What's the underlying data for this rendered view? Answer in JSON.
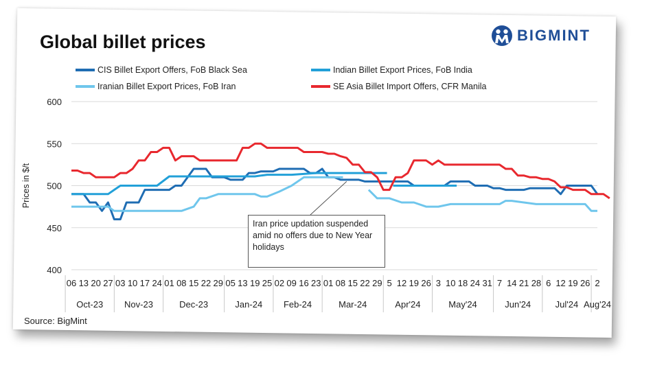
{
  "title": "Global billet prices",
  "brand": "BIGMINT",
  "source": "Source: BigMint",
  "annotation": "Iran price updation suspended amid no offers due to New Year holidays",
  "chart_data": {
    "type": "line",
    "title": "Global billet prices",
    "xlabel": "",
    "ylabel": "Prices in $/t",
    "ylim": [
      400,
      600
    ],
    "yticks": [
      400,
      450,
      500,
      550,
      600
    ],
    "x_tick_labels": [
      "06",
      "13",
      "20",
      "27",
      "03",
      "10",
      "17",
      "24",
      "01",
      "08",
      "15",
      "22",
      "29",
      "05",
      "13",
      "19",
      "25",
      "02",
      "09",
      "16",
      "23",
      "01",
      "08",
      "15",
      "22",
      "29",
      "5",
      "12",
      "19",
      "26",
      "3",
      "10",
      "18",
      "24",
      "31",
      "7",
      "14",
      "21",
      "28",
      "6",
      "12",
      "19",
      "26",
      "2"
    ],
    "months": [
      {
        "label": "Oct-23",
        "start": 0,
        "end": 4
      },
      {
        "label": "Nov-23",
        "start": 4,
        "end": 8
      },
      {
        "label": "Dec-23",
        "start": 8,
        "end": 13
      },
      {
        "label": "Jan-24",
        "start": 13,
        "end": 17
      },
      {
        "label": "Feb-24",
        "start": 17,
        "end": 21
      },
      {
        "label": "Mar-24",
        "start": 21,
        "end": 26
      },
      {
        "label": "Apr'24",
        "start": 26,
        "end": 30
      },
      {
        "label": "May'24",
        "start": 30,
        "end": 35
      },
      {
        "label": "Jun'24",
        "start": 35,
        "end": 39
      },
      {
        "label": "Jul'24",
        "start": 39,
        "end": 43
      },
      {
        "label": "Aug'24",
        "start": 43,
        "end": 44
      }
    ],
    "series": [
      {
        "name": "CIS Billet Export Offers, FoB Black Sea",
        "color": "#1f6db3",
        "x": [
          0,
          0.5,
          1,
          1.5,
          2,
          2.5,
          3,
          3.5,
          4,
          4.5,
          5,
          5.5,
          6,
          6.5,
          7,
          7.5,
          8,
          8.5,
          9,
          9.5,
          10,
          10.5,
          11,
          11.5,
          12,
          12.5,
          13,
          13.5,
          14,
          14.5,
          15,
          15.5,
          16,
          16.5,
          17,
          17.5,
          18,
          18.5,
          19,
          19.5,
          20,
          20.5,
          21,
          21.5,
          22,
          22.5,
          23,
          23.5,
          24,
          24.5,
          25,
          25.5,
          26,
          26.5,
          27,
          27.5,
          28,
          28.5,
          29,
          29.5,
          30,
          30.5,
          31,
          31.5,
          32,
          32.5,
          33,
          33.5,
          34,
          34.5,
          35,
          35.5,
          36,
          36.5,
          37,
          37.5,
          38,
          38.5,
          39,
          39.5,
          40,
          40.5,
          41,
          41.5,
          42,
          42.5,
          43
        ],
        "values": [
          490,
          490,
          490,
          480,
          480,
          470,
          480,
          460,
          460,
          480,
          480,
          480,
          495,
          495,
          495,
          495,
          495,
          500,
          500,
          510,
          520,
          520,
          520,
          510,
          510,
          510,
          507,
          507,
          507,
          515,
          515,
          517,
          517,
          517,
          520,
          520,
          520,
          520,
          520,
          515,
          515,
          520,
          510,
          510,
          507,
          507,
          507,
          507,
          505,
          505,
          505,
          505,
          505,
          505,
          505,
          505,
          500,
          500,
          500,
          500,
          500,
          500,
          505,
          505,
          505,
          505,
          500,
          500,
          500,
          497,
          497,
          495,
          495,
          495,
          495,
          497,
          497,
          497,
          497,
          497,
          490,
          500,
          500,
          500,
          500,
          500,
          490
        ]
      },
      {
        "name": "Indian Billet Export Prices, FoB India",
        "color": "#22a0d8",
        "x": [
          0,
          1,
          2,
          3,
          3.5,
          4,
          5,
          6,
          7,
          8,
          9,
          10,
          11,
          12,
          13,
          14,
          15,
          16,
          17,
          18,
          19,
          20,
          21,
          22,
          23,
          24,
          25,
          25.8
        ],
        "values": [
          490,
          490,
          490,
          490,
          495,
          500,
          500,
          500,
          500,
          511,
          511,
          511,
          511,
          511,
          511,
          511,
          511,
          513,
          513,
          513,
          514,
          515,
          515,
          515,
          515,
          515,
          515,
          515
        ],
        "x2": [
          26.3,
          27,
          28,
          29,
          30,
          31,
          31.5
        ],
        "values2": [
          500,
          500,
          500,
          500,
          500,
          500,
          500
        ]
      },
      {
        "name": "Iranian Billet Export Prices, FoB Iran",
        "color": "#6fc6ec",
        "x": [
          0,
          1,
          2,
          3,
          3.5,
          4,
          5,
          6,
          7,
          8,
          9,
          10,
          10.5,
          11,
          12,
          13,
          14,
          15,
          15.5,
          16,
          17,
          18,
          19,
          20,
          21,
          22,
          22.2
        ],
        "values": [
          475,
          475,
          475,
          475,
          470,
          470,
          470,
          470,
          470,
          470,
          470,
          475,
          485,
          485,
          490,
          490,
          490,
          490,
          487,
          487,
          493,
          500,
          510,
          510,
          510,
          510,
          510
        ],
        "x2": [
          24.3,
          25,
          26,
          27,
          28,
          29,
          30,
          31,
          32,
          33,
          34,
          35,
          35.5,
          36,
          37,
          38,
          39,
          40,
          41,
          42,
          42.5,
          43
        ],
        "values2": [
          495,
          485,
          485,
          480,
          480,
          475,
          475,
          478,
          478,
          478,
          478,
          478,
          482,
          482,
          480,
          478,
          478,
          478,
          478,
          478,
          470,
          470
        ]
      },
      {
        "name": "SE Asia Billet Import Offers, CFR Manila",
        "color": "#e8282e",
        "x": [
          0,
          0.5,
          1,
          1.5,
          2,
          2.5,
          3,
          3.5,
          4,
          4.5,
          5,
          5.5,
          6,
          6.5,
          7,
          7.5,
          8,
          8.5,
          9,
          9.5,
          10,
          10.5,
          11,
          11.5,
          12,
          12.5,
          13,
          13.5,
          14,
          14.5,
          15,
          15.5,
          16,
          16.5,
          17,
          17.5,
          18,
          18.5,
          19,
          19.5,
          20,
          20.5,
          21,
          21.5,
          22,
          22.5,
          23,
          23.5,
          24,
          24.5,
          25,
          25.5,
          26,
          26.5,
          27,
          27.5,
          28,
          28.5,
          29,
          29.5,
          30,
          30.5,
          31,
          31.5,
          32,
          32.5,
          33,
          33.5,
          34,
          34.5,
          35,
          35.5,
          36,
          36.5,
          37,
          37.5,
          38,
          38.5,
          39,
          39.5,
          40,
          40.5,
          41,
          41.5,
          42,
          42.5,
          43
        ],
        "values": [
          518,
          518,
          515,
          515,
          510,
          510,
          510,
          510,
          515,
          515,
          520,
          530,
          530,
          540,
          540,
          545,
          545,
          530,
          535,
          535,
          535,
          530,
          530,
          530,
          530,
          530,
          530,
          530,
          545,
          545,
          550,
          550,
          545,
          545,
          545,
          545,
          545,
          545,
          540,
          540,
          540,
          540,
          538,
          538,
          535,
          533,
          525,
          525,
          516,
          516,
          510,
          495,
          495,
          510,
          510,
          515,
          530,
          530,
          530,
          525,
          530,
          525,
          525,
          525,
          525,
          525,
          525,
          525,
          525,
          525,
          525,
          520,
          520,
          512,
          512,
          510,
          510,
          508,
          508,
          505,
          498,
          498,
          495,
          495,
          495,
          490,
          490
        ],
        "x_tail": [
          43,
          43.5,
          44
        ],
        "values_tail": [
          490,
          490,
          485
        ]
      }
    ],
    "legend_position": "top"
  }
}
